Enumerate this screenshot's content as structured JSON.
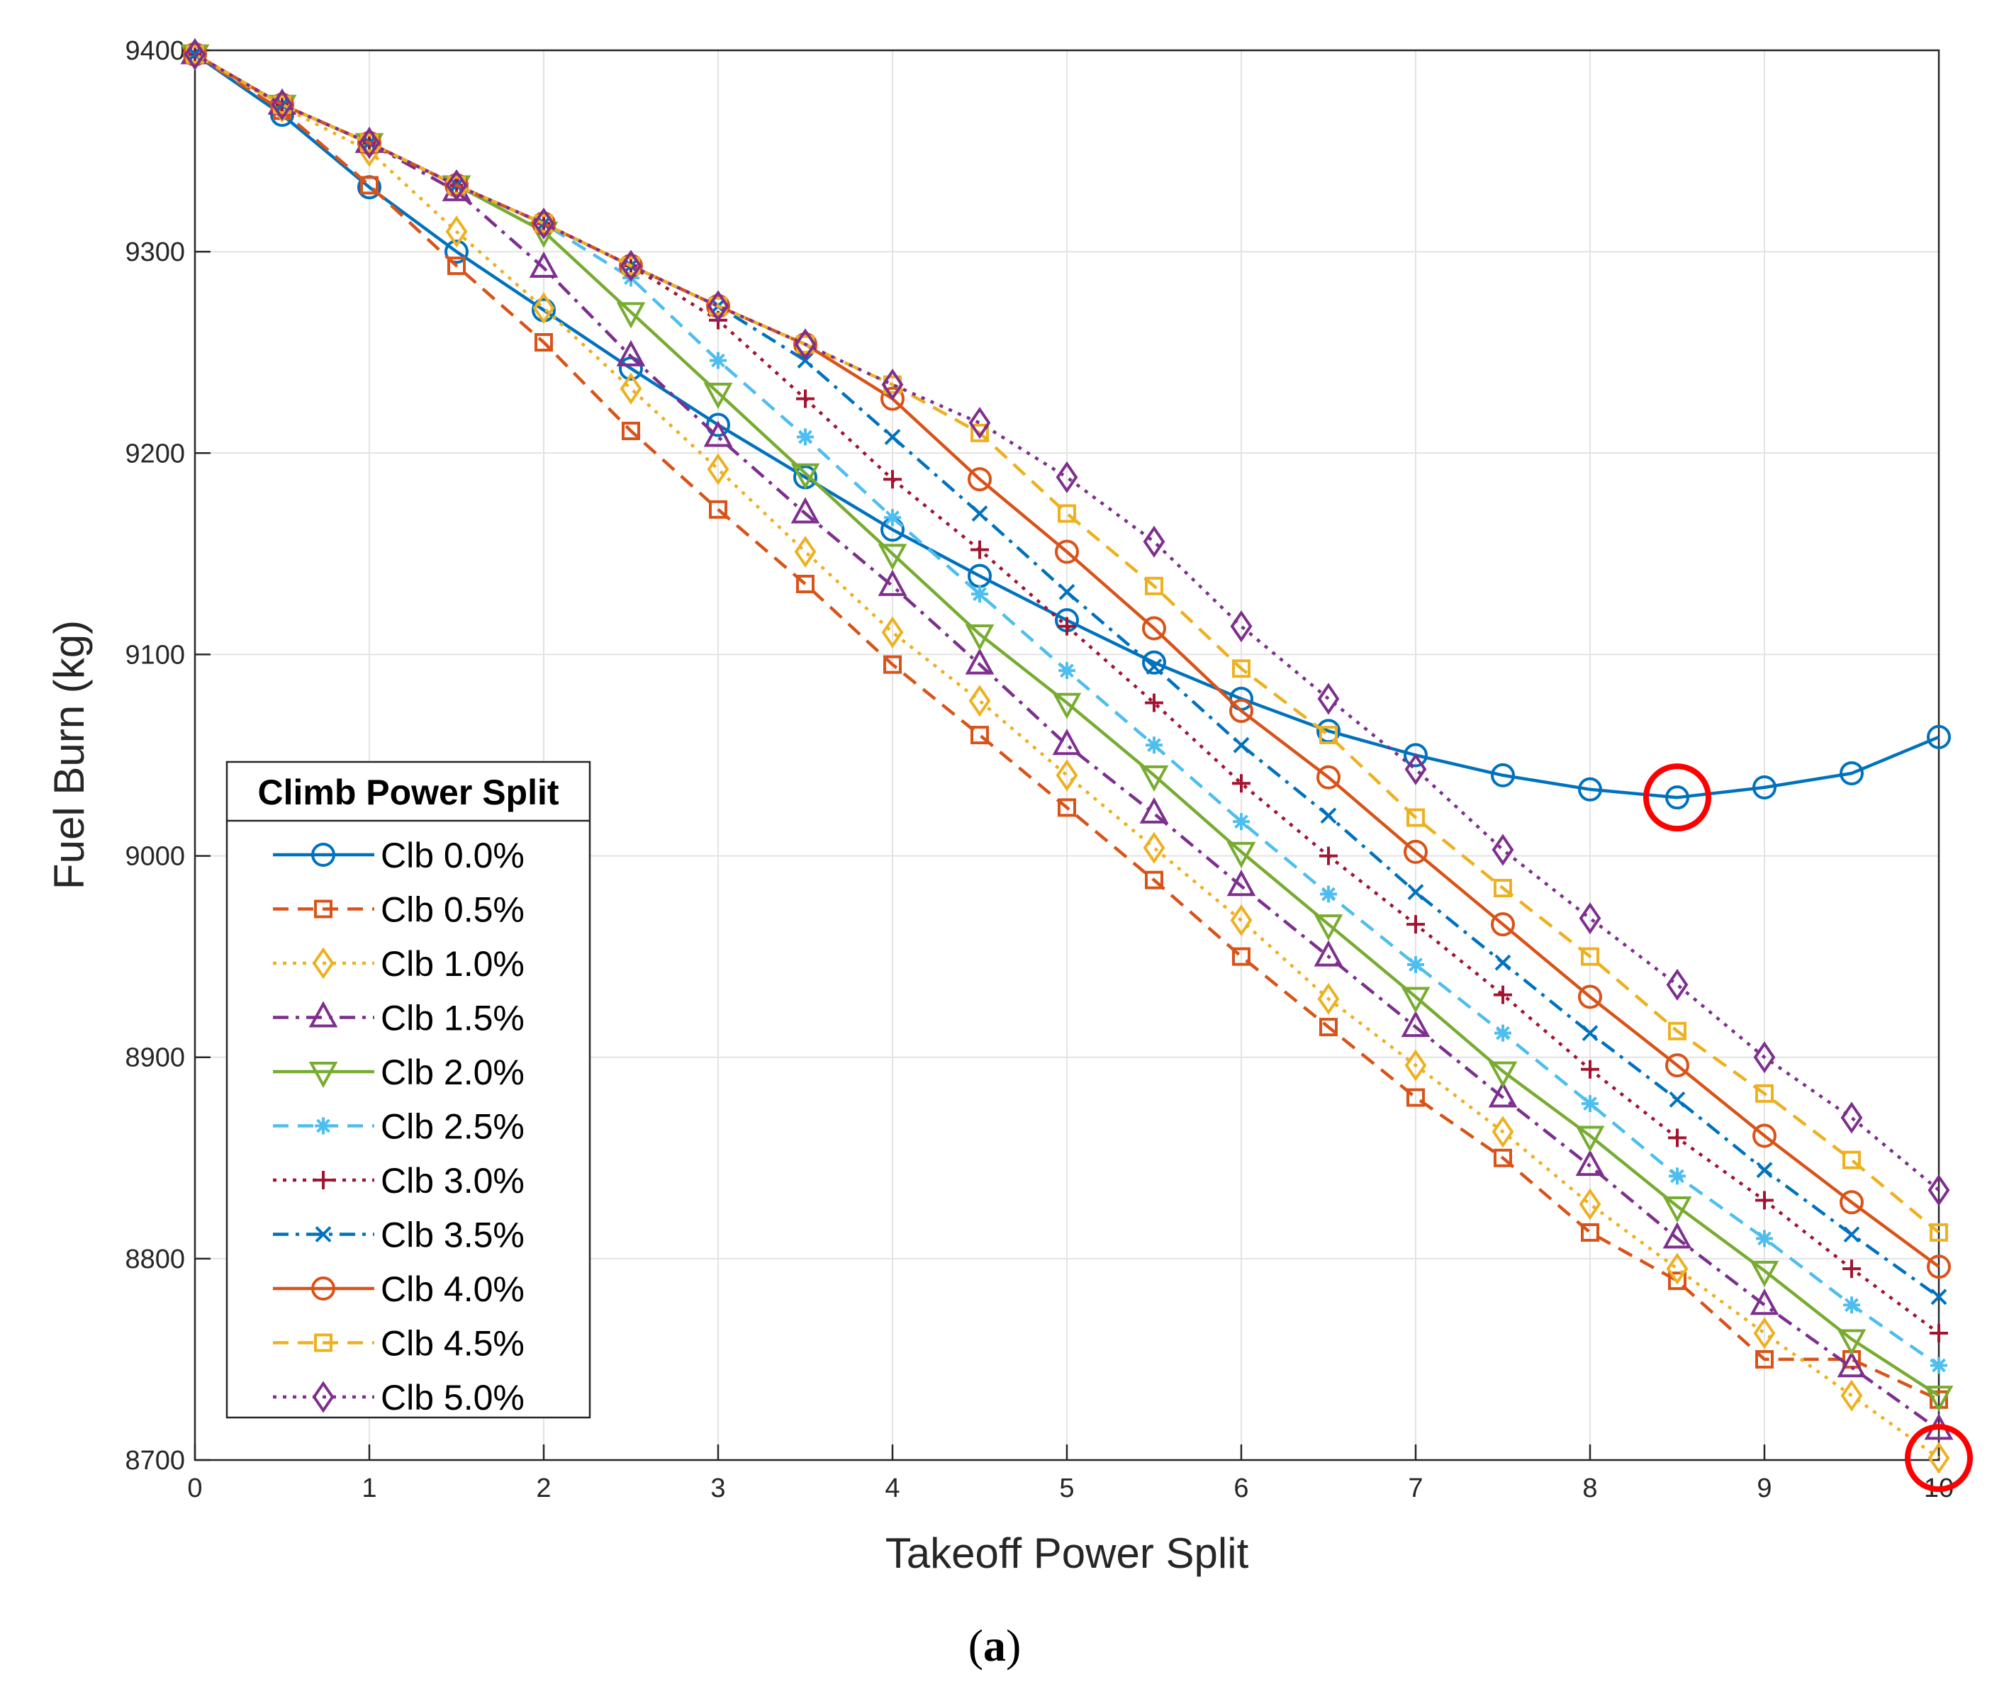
{
  "chart_data": {
    "type": "line",
    "title": "",
    "xlabel": "Takeoff Power Split",
    "ylabel": "Fuel Burn (kg)",
    "xlim": [
      0,
      10
    ],
    "ylim": [
      8700,
      9400
    ],
    "xticks": [
      0,
      1,
      2,
      3,
      4,
      5,
      6,
      7,
      8,
      9,
      10
    ],
    "yticks": [
      8700,
      8800,
      8900,
      9000,
      9100,
      9200,
      9300,
      9400
    ],
    "xtick_labels": [
      "0",
      "1",
      "2",
      "3",
      "4",
      "5",
      "6",
      "7",
      "8",
      "9",
      "10"
    ],
    "ytick_labels": [
      "8700",
      "8800",
      "8900",
      "9000",
      "9100",
      "9200",
      "9300",
      "9400"
    ],
    "grid": true,
    "legend_title": "Climb Power Split",
    "legend_position": "bottom-left",
    "x": [
      0,
      0.5,
      1,
      1.5,
      2,
      2.5,
      3,
      3.5,
      4,
      4.5,
      5,
      5.5,
      6,
      6.5,
      7,
      7.5,
      8,
      8.5,
      9,
      9.5,
      10
    ],
    "series": [
      {
        "name": "Clb 0.0%",
        "color": "#0072BD",
        "dash": "solid",
        "marker": "circle",
        "values": [
          9398,
          9368,
          9332,
          9300,
          9271,
          9242,
          9214,
          9188,
          9162,
          9139,
          9117,
          9096,
          9078,
          9062,
          9050,
          9040,
          9033,
          9029,
          9034,
          9041,
          9059
        ]
      },
      {
        "name": "Clb 0.5%",
        "color": "#D95319",
        "dash": "dashed",
        "marker": "square",
        "values": [
          9398,
          9370,
          9333,
          9293,
          9255,
          9211,
          9172,
          9135,
          9095,
          9060,
          9024,
          8988,
          8950,
          8915,
          8880,
          8850,
          8813,
          8789,
          8750,
          8750,
          8730
        ]
      },
      {
        "name": "Clb 1.0%",
        "color": "#EDB120",
        "dash": "dotted",
        "marker": "diamond",
        "values": [
          9398,
          9372,
          9350,
          9310,
          9272,
          9232,
          9192,
          9151,
          9111,
          9077,
          9040,
          9004,
          8968,
          8929,
          8896,
          8863,
          8827,
          8795,
          8763,
          8732,
          8701
        ]
      },
      {
        "name": "Clb 1.5%",
        "color": "#7E2F8E",
        "dash": "dashdot",
        "marker": "triangle-up",
        "values": [
          9398,
          9373,
          9354,
          9330,
          9292,
          9248,
          9208,
          9170,
          9134,
          9095,
          9055,
          9021,
          8985,
          8950,
          8915,
          8880,
          8846,
          8810,
          8777,
          8746,
          8715
        ]
      },
      {
        "name": "Clb 2.0%",
        "color": "#77AC30",
        "dash": "solid",
        "marker": "triangle-down",
        "values": [
          9398,
          9373,
          9354,
          9333,
          9310,
          9270,
          9230,
          9190,
          9150,
          9110,
          9076,
          9040,
          9002,
          8966,
          8930,
          8893,
          8861,
          8826,
          8794,
          8760,
          8732
        ]
      },
      {
        "name": "Clb 2.5%",
        "color": "#4DBEEE",
        "dash": "dashed",
        "marker": "asterisk",
        "values": [
          9398,
          9373,
          9354,
          9333,
          9314,
          9287,
          9246,
          9208,
          9168,
          9130,
          9092,
          9055,
          9017,
          8981,
          8946,
          8912,
          8877,
          8841,
          8810,
          8777,
          8747
        ]
      },
      {
        "name": "Clb 3.0%",
        "color": "#A2142F",
        "dash": "dotted",
        "marker": "plus",
        "values": [
          9398,
          9373,
          9354,
          9333,
          9314,
          9293,
          9266,
          9227,
          9187,
          9152,
          9114,
          9076,
          9036,
          9000,
          8966,
          8931,
          8894,
          8860,
          8829,
          8795,
          8763
        ]
      },
      {
        "name": "Clb 3.5%",
        "color": "#0072BD",
        "dash": "dashdot",
        "marker": "x",
        "values": [
          9398,
          9373,
          9354,
          9333,
          9314,
          9293,
          9273,
          9246,
          9208,
          9170,
          9131,
          9094,
          9055,
          9020,
          8982,
          8947,
          8912,
          8879,
          8844,
          8812,
          8781
        ]
      },
      {
        "name": "Clb 4.0%",
        "color": "#D95319",
        "dash": "solid",
        "marker": "circle",
        "values": [
          9398,
          9373,
          9354,
          9333,
          9314,
          9293,
          9273,
          9254,
          9227,
          9187,
          9151,
          9113,
          9072,
          9039,
          9002,
          8966,
          8930,
          8896,
          8861,
          8828,
          8796
        ]
      },
      {
        "name": "Clb 4.5%",
        "color": "#EDB120",
        "dash": "dashed",
        "marker": "square",
        "values": [
          9398,
          9373,
          9354,
          9333,
          9314,
          9293,
          9273,
          9254,
          9234,
          9210,
          9170,
          9134,
          9093,
          9060,
          9019,
          8984,
          8950,
          8913,
          8882,
          8849,
          8813
        ]
      },
      {
        "name": "Clb 5.0%",
        "color": "#7E2F8E",
        "dash": "dotted",
        "marker": "diamond",
        "values": [
          9398,
          9373,
          9354,
          9333,
          9314,
          9293,
          9273,
          9254,
          9234,
          9215,
          9188,
          9156,
          9114,
          9078,
          9043,
          9003,
          8969,
          8936,
          8900,
          8870,
          8834
        ]
      }
    ],
    "highlights": [
      {
        "name": "Clb 0.0% minimum",
        "x": 8.5,
        "y": 9029,
        "color": "#FF0000"
      },
      {
        "name": "Clb 1.0% minimum",
        "x": 10,
        "y": 8701,
        "color": "#FF0000"
      }
    ]
  },
  "caption": {
    "open": "(",
    "letter": "a",
    "close": ")"
  }
}
